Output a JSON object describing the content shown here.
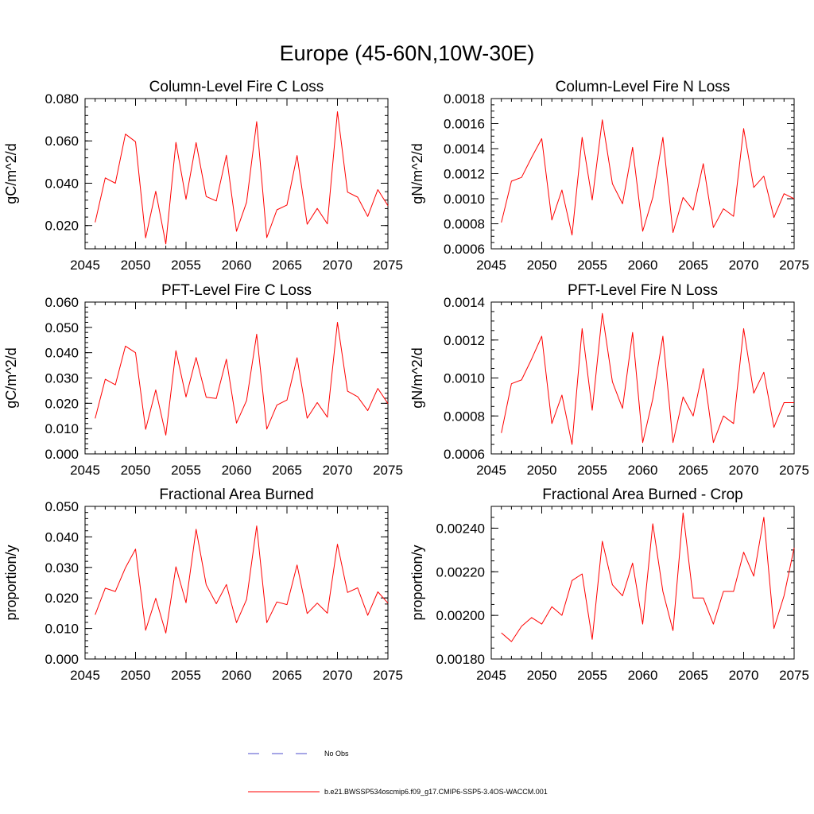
{
  "figure_title": "Europe (45-60N,10W-30E)",
  "colors": {
    "model": "#ff0000",
    "obs": "#4d4dcc",
    "axis": "#000000"
  },
  "legend": {
    "entries": [
      {
        "label": "No Obs",
        "style": "dashed",
        "color": "#4d4dcc"
      },
      {
        "label": "b.e21.BWSSP534oscmip6.f09_g17.CMIP6-SSP5-3.4OS-WACCM.001",
        "style": "solid",
        "color": "#ff0000"
      }
    ]
  },
  "chart_data": [
    {
      "type": "line",
      "title": "Column-Level Fire C Loss",
      "ylabel": "gC/m^2/d",
      "xlim": [
        2045,
        2075
      ],
      "ylim": [
        0.009,
        0.08
      ],
      "xticks": [
        2045,
        2050,
        2055,
        2060,
        2065,
        2070,
        2075
      ],
      "xticklabels": [
        "2045",
        "2050",
        "2055",
        "2060",
        "2065",
        "2070",
        "2075"
      ],
      "yticks": [
        0.02,
        0.04,
        0.06,
        0.08
      ],
      "yticklabels": [
        "0.020",
        "0.040",
        "0.060",
        "0.080"
      ],
      "yminor": 0.004,
      "x": [
        2046,
        2047,
        2048,
        2049,
        2050,
        2051,
        2052,
        2053,
        2054,
        2055,
        2056,
        2057,
        2058,
        2059,
        2060,
        2061,
        2062,
        2063,
        2064,
        2065,
        2066,
        2067,
        2068,
        2069,
        2070,
        2071,
        2072,
        2073,
        2074,
        2075
      ],
      "series": [
        {
          "name": "b.e21.BWSSP534oscmip6.f09_g17.CMIP6-SSP5-3.4OS-WACCM.001",
          "values": [
            0.0215,
            0.0425,
            0.04,
            0.0632,
            0.0596,
            0.0142,
            0.0362,
            0.0113,
            0.0593,
            0.0324,
            0.0592,
            0.0337,
            0.0316,
            0.0532,
            0.0173,
            0.031,
            0.0691,
            0.0143,
            0.0274,
            0.0297,
            0.0531,
            0.0206,
            0.0281,
            0.0208,
            0.0738,
            0.0358,
            0.0334,
            0.0243,
            0.037,
            0.0294
          ]
        }
      ]
    },
    {
      "type": "line",
      "title": "Column-Level Fire N Loss",
      "ylabel": "gN/m^2/d",
      "xlim": [
        2045,
        2075
      ],
      "ylim": [
        0.0006,
        0.0018
      ],
      "xticks": [
        2045,
        2050,
        2055,
        2060,
        2065,
        2070,
        2075
      ],
      "xticklabels": [
        "2045",
        "2050",
        "2055",
        "2060",
        "2065",
        "2070",
        "2075"
      ],
      "yticks": [
        0.0006,
        0.0008,
        0.001,
        0.0012,
        0.0014,
        0.0016,
        0.0018
      ],
      "yticklabels": [
        "0.0006",
        "0.0008",
        "0.0010",
        "0.0012",
        "0.0014",
        "0.0016",
        "0.0018"
      ],
      "yminor": 5e-05,
      "x": [
        2046,
        2047,
        2048,
        2049,
        2050,
        2051,
        2052,
        2053,
        2054,
        2055,
        2056,
        2057,
        2058,
        2059,
        2060,
        2061,
        2062,
        2063,
        2064,
        2065,
        2066,
        2067,
        2068,
        2069,
        2070,
        2071,
        2072,
        2073,
        2074,
        2075
      ],
      "series": [
        {
          "name": "b.e21.BWSSP534oscmip6.f09_g17.CMIP6-SSP5-3.4OS-WACCM.001",
          "values": [
            0.00081,
            0.00114,
            0.00117,
            0.00133,
            0.00148,
            0.00083,
            0.00107,
            0.00071,
            0.00149,
            0.00099,
            0.00163,
            0.00112,
            0.00096,
            0.00141,
            0.00074,
            0.00101,
            0.00149,
            0.00073,
            0.00101,
            0.00091,
            0.00128,
            0.00077,
            0.00092,
            0.00086,
            0.00156,
            0.00109,
            0.00118,
            0.00085,
            0.00104,
            0.001
          ]
        }
      ]
    },
    {
      "type": "line",
      "title": "PFT-Level Fire C Loss",
      "ylabel": "gC/m^2/d",
      "xlim": [
        2045,
        2075
      ],
      "ylim": [
        0.0,
        0.06
      ],
      "xticks": [
        2045,
        2050,
        2055,
        2060,
        2065,
        2070,
        2075
      ],
      "xticklabels": [
        "2045",
        "2050",
        "2055",
        "2060",
        "2065",
        "2070",
        "2075"
      ],
      "yticks": [
        0.0,
        0.01,
        0.02,
        0.03,
        0.04,
        0.05,
        0.06
      ],
      "yticklabels": [
        "0.000",
        "0.010",
        "0.020",
        "0.030",
        "0.040",
        "0.050",
        "0.060"
      ],
      "yminor": 0.002,
      "x": [
        2046,
        2047,
        2048,
        2049,
        2050,
        2051,
        2052,
        2053,
        2054,
        2055,
        2056,
        2057,
        2058,
        2059,
        2060,
        2061,
        2062,
        2063,
        2064,
        2065,
        2066,
        2067,
        2068,
        2069,
        2070,
        2071,
        2072,
        2073,
        2074,
        2075
      ],
      "series": [
        {
          "name": "b.e21.BWSSP534oscmip6.f09_g17.CMIP6-SSP5-3.4OS-WACCM.001",
          "values": [
            0.014,
            0.0295,
            0.0273,
            0.0426,
            0.04,
            0.0097,
            0.0253,
            0.0074,
            0.0408,
            0.0225,
            0.0381,
            0.0224,
            0.0219,
            0.0374,
            0.0122,
            0.0211,
            0.0473,
            0.0098,
            0.0193,
            0.0213,
            0.038,
            0.0141,
            0.0203,
            0.0145,
            0.052,
            0.0248,
            0.0226,
            0.0171,
            0.0259,
            0.0199
          ]
        }
      ]
    },
    {
      "type": "line",
      "title": "PFT-Level Fire N Loss",
      "ylabel": "gN/m^2/d",
      "xlim": [
        2045,
        2075
      ],
      "ylim": [
        0.0006,
        0.0014
      ],
      "xticks": [
        2045,
        2050,
        2055,
        2060,
        2065,
        2070,
        2075
      ],
      "xticklabels": [
        "2045",
        "2050",
        "2055",
        "2060",
        "2065",
        "2070",
        "2075"
      ],
      "yticks": [
        0.0006,
        0.0008,
        0.001,
        0.0012,
        0.0014
      ],
      "yticklabels": [
        "0.0006",
        "0.0008",
        "0.0010",
        "0.0012",
        "0.0014"
      ],
      "yminor": 5e-05,
      "x": [
        2046,
        2047,
        2048,
        2049,
        2050,
        2051,
        2052,
        2053,
        2054,
        2055,
        2056,
        2057,
        2058,
        2059,
        2060,
        2061,
        2062,
        2063,
        2064,
        2065,
        2066,
        2067,
        2068,
        2069,
        2070,
        2071,
        2072,
        2073,
        2074,
        2075
      ],
      "series": [
        {
          "name": "b.e21.BWSSP534oscmip6.f09_g17.CMIP6-SSP5-3.4OS-WACCM.001",
          "values": [
            0.00071,
            0.00097,
            0.00099,
            0.0011,
            0.00122,
            0.00076,
            0.00091,
            0.00065,
            0.00126,
            0.00083,
            0.00134,
            0.00098,
            0.00084,
            0.00124,
            0.00066,
            0.00089,
            0.00122,
            0.00066,
            0.0009,
            0.0008,
            0.00105,
            0.00066,
            0.0008,
            0.00076,
            0.00126,
            0.00092,
            0.00103,
            0.00074,
            0.00087,
            0.00087
          ]
        }
      ]
    },
    {
      "type": "line",
      "title": "Fractional Area Burned",
      "ylabel": "proportion/y",
      "xlim": [
        2045,
        2075
      ],
      "ylim": [
        0.0,
        0.05
      ],
      "xticks": [
        2045,
        2050,
        2055,
        2060,
        2065,
        2070,
        2075
      ],
      "xticklabels": [
        "2045",
        "2050",
        "2055",
        "2060",
        "2065",
        "2070",
        "2075"
      ],
      "yticks": [
        0.0,
        0.01,
        0.02,
        0.03,
        0.04,
        0.05
      ],
      "yticklabels": [
        "0.000",
        "0.010",
        "0.020",
        "0.030",
        "0.040",
        "0.050"
      ],
      "yminor": 0.002,
      "x": [
        2046,
        2047,
        2048,
        2049,
        2050,
        2051,
        2052,
        2053,
        2054,
        2055,
        2056,
        2057,
        2058,
        2059,
        2060,
        2061,
        2062,
        2063,
        2064,
        2065,
        2066,
        2067,
        2068,
        2069,
        2070,
        2071,
        2072,
        2073,
        2074,
        2075
      ],
      "series": [
        {
          "name": "b.e21.BWSSP534oscmip6.f09_g17.CMIP6-SSP5-3.4OS-WACCM.001",
          "values": [
            0.0145,
            0.0232,
            0.0221,
            0.0299,
            0.036,
            0.0094,
            0.0199,
            0.0085,
            0.0302,
            0.0184,
            0.0425,
            0.0243,
            0.0181,
            0.0244,
            0.0119,
            0.0195,
            0.0436,
            0.0119,
            0.0187,
            0.0178,
            0.0308,
            0.0149,
            0.0183,
            0.015,
            0.0376,
            0.0218,
            0.0233,
            0.0143,
            0.022,
            0.0183
          ]
        }
      ]
    },
    {
      "type": "line",
      "title": "Fractional Area Burned - Crop",
      "ylabel": "proportion/y",
      "xlim": [
        2045,
        2075
      ],
      "ylim": [
        0.0018,
        0.0025
      ],
      "xticks": [
        2045,
        2050,
        2055,
        2060,
        2065,
        2070,
        2075
      ],
      "xticklabels": [
        "2045",
        "2050",
        "2055",
        "2060",
        "2065",
        "2070",
        "2075"
      ],
      "yticks": [
        0.0018,
        0.002,
        0.0022,
        0.0024
      ],
      "yticklabels": [
        "0.00180",
        "0.00200",
        "0.00220",
        "0.00240"
      ],
      "yminor": 5e-05,
      "x": [
        2046,
        2047,
        2048,
        2049,
        2050,
        2051,
        2052,
        2053,
        2054,
        2055,
        2056,
        2057,
        2058,
        2059,
        2060,
        2061,
        2062,
        2063,
        2064,
        2065,
        2066,
        2067,
        2068,
        2069,
        2070,
        2071,
        2072,
        2073,
        2074,
        2075
      ],
      "series": [
        {
          "name": "b.e21.BWSSP534oscmip6.f09_g17.CMIP6-SSP5-3.4OS-WACCM.001",
          "values": [
            0.00192,
            0.00188,
            0.00195,
            0.00199,
            0.00196,
            0.00204,
            0.002,
            0.00216,
            0.00219,
            0.00189,
            0.00234,
            0.00214,
            0.00209,
            0.00224,
            0.00196,
            0.00242,
            0.00211,
            0.00193,
            0.00247,
            0.00208,
            0.00208,
            0.00196,
            0.00211,
            0.00211,
            0.00229,
            0.00218,
            0.00245,
            0.00194,
            0.00209,
            0.00231
          ]
        }
      ]
    }
  ]
}
